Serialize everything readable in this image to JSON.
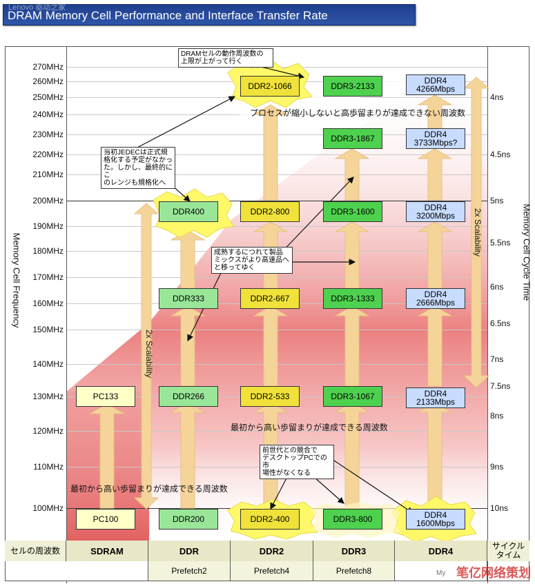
{
  "title": "DRAM Memory Cell Performance and Interface Transfer Rate",
  "watermark_top": "Lenovo 驱动之家",
  "watermark_bottom": "笔亿网络策划",
  "watermark_small": "My",
  "y_axis_label": "Memory Cell Frequency",
  "right_axis_label": "Memory Cell Cycle Time",
  "mhz_ticks": [
    "270MHz",
    "260MHz",
    "250MHz",
    "240MHz",
    "230MHz",
    "220MHz",
    "210MHz",
    "200MHz",
    "190MHz",
    "180MHz",
    "170MHz",
    "160MHz",
    "150MHz",
    "140MHz",
    "130MHz",
    "120MHz",
    "110MHz",
    "100MHz"
  ],
  "ns_ticks": [
    "4ns",
    "4.5ns",
    "5ns",
    "5.5ns",
    "6ns",
    "6.5ns",
    "7ns",
    "7.5ns",
    "8ns",
    "9ns",
    "10ns"
  ],
  "scalability_label": "2x Scalability",
  "boxes": {
    "pc133": "PC133",
    "pc100": "PC100",
    "ddr400": "DDR400",
    "ddr333": "DDR333",
    "ddr266": "DDR266",
    "ddr200": "DDR200",
    "ddr2_1066": "DDR2-1066",
    "ddr2_800": "DDR2-800",
    "ddr2_667": "DDR2-667",
    "ddr2_533": "DDR2-533",
    "ddr2_400": "DDR2-400",
    "ddr3_2133": "DDR3-2133",
    "ddr3_1867": "DDR3-1867",
    "ddr3_1600": "DDR3-1600",
    "ddr3_1333": "DDR3-1333",
    "ddr3_1067": "DDR3-1067",
    "ddr3_800": "DDR3-800",
    "ddr4_4266_a": "DDR4",
    "ddr4_4266_b": "4266Mbps",
    "ddr4_3733_a": "DDR4",
    "ddr4_3733_b": "3733Mbps?",
    "ddr4_3200_a": "DDR4",
    "ddr4_3200_b": "3200Mbps",
    "ddr4_2666_a": "DDR4",
    "ddr4_2666_b": "2666Mbps",
    "ddr4_2133_a": "DDR4",
    "ddr4_2133_b": "2133Mbps",
    "ddr4_1600_a": "DDR4",
    "ddr4_1600_b": "1600Mbps"
  },
  "notes": {
    "ceiling": [
      "DRAMセルの動作周波数の",
      "上限が上がって行く"
    ],
    "jedec": [
      "当初JEDECは正式規",
      "格化する予定がなかっ",
      "た。しかし、最終的にこ",
      "のレンジも規格化へ"
    ],
    "maturity": [
      "成熟するにつれて製品",
      "ミックスがより高速品へ",
      "と移ってゆく"
    ],
    "competition": [
      "前世代との競合で",
      "デスクトップPCでの市",
      "場性がなくなる"
    ]
  },
  "labels": {
    "process_not_shrink": "プロセスが縮小しないと高歩留まりが達成できない周波数",
    "high_yield_mid": "最初から高い歩留まりが達成できる周波数",
    "high_yield_low": "最初から高い歩留まりが達成できる周波数"
  },
  "bottom": {
    "cell_freq": "セルの周波数",
    "cycle_time_a": "サイクル",
    "cycle_time_b": "タイム",
    "generations": [
      "SDRAM",
      "DDR",
      "DDR2",
      "DDR3",
      "DDR4"
    ],
    "prefetch": [
      "Prefetch2",
      "Prefetch4",
      "Prefetch8"
    ]
  },
  "colors": {
    "title_bg": "#2e55a8",
    "sdram": "#ffffc8",
    "ddr": "#99e699",
    "ddr2": "#f0e23a",
    "ddr3": "#4ed14e",
    "ddr4": "#c8dcff",
    "gradient_red": "#e06060",
    "arrow": "#f5d49a"
  }
}
